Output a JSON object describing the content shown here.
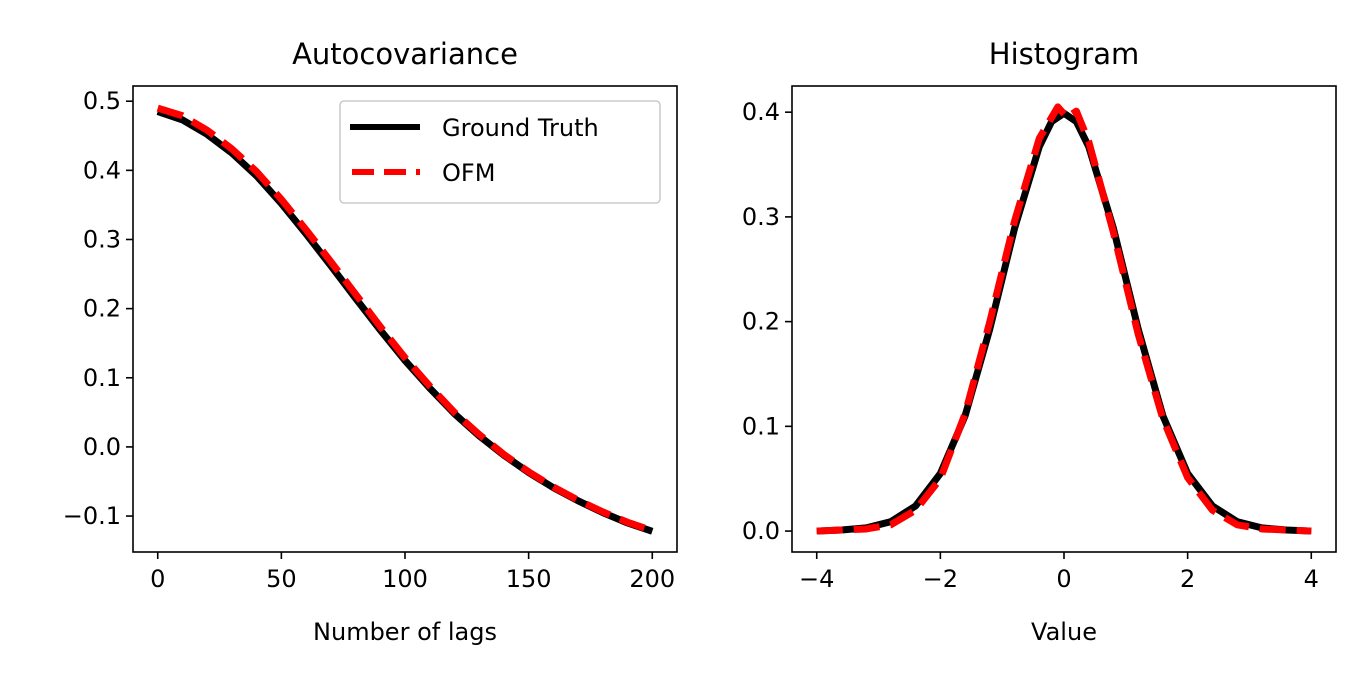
{
  "chart_data": [
    {
      "type": "line",
      "title": "Autocovariance",
      "xlabel": "Number of lags",
      "ylabel": "",
      "xlim": [
        -10,
        210
      ],
      "ylim": [
        -0.152,
        0.522
      ],
      "xticks": [
        0,
        50,
        100,
        150,
        200
      ],
      "xtick_labels": [
        "0",
        "50",
        "100",
        "150",
        "200"
      ],
      "yticks": [
        -0.1,
        0.0,
        0.1,
        0.2,
        0.3,
        0.4,
        0.5
      ],
      "ytick_labels": [
        "−0.1",
        "0.0",
        "0.1",
        "0.2",
        "0.3",
        "0.4",
        "0.5"
      ],
      "legend": {
        "position": "upper right"
      },
      "series": [
        {
          "name": "Ground Truth",
          "color": "#000000",
          "style": "solid",
          "x": [
            0,
            10,
            20,
            30,
            40,
            50,
            60,
            70,
            80,
            90,
            100,
            110,
            120,
            130,
            140,
            150,
            160,
            170,
            180,
            190,
            200
          ],
          "y": [
            0.485,
            0.473,
            0.452,
            0.425,
            0.392,
            0.352,
            0.308,
            0.262,
            0.215,
            0.169,
            0.125,
            0.085,
            0.048,
            0.016,
            -0.012,
            -0.037,
            -0.059,
            -0.078,
            -0.095,
            -0.11,
            -0.122
          ]
        },
        {
          "name": "OFM",
          "color": "#ff0000",
          "style": "dashed",
          "x": [
            0,
            10,
            20,
            30,
            40,
            50,
            60,
            70,
            80,
            90,
            100,
            110,
            120,
            130,
            140,
            150,
            160,
            170,
            180,
            190,
            200
          ],
          "y": [
            0.49,
            0.479,
            0.458,
            0.431,
            0.398,
            0.358,
            0.314,
            0.268,
            0.221,
            0.174,
            0.129,
            0.088,
            0.05,
            0.018,
            -0.011,
            -0.036,
            -0.058,
            -0.077,
            -0.094,
            -0.109,
            -0.121
          ]
        }
      ]
    },
    {
      "type": "line",
      "title": "Histogram",
      "xlabel": "Value",
      "ylabel": "",
      "xlim": [
        -4.4,
        4.4
      ],
      "ylim": [
        -0.02,
        0.425
      ],
      "xticks": [
        -4,
        -2,
        0,
        2,
        4
      ],
      "xtick_labels": [
        "−4",
        "−2",
        "0",
        "2",
        "4"
      ],
      "yticks": [
        0.0,
        0.1,
        0.2,
        0.3,
        0.4
      ],
      "ytick_labels": [
        "0.0",
        "0.1",
        "0.2",
        "0.3",
        "0.4"
      ],
      "series": [
        {
          "name": "Ground Truth",
          "color": "#000000",
          "style": "solid",
          "x": [
            -4.0,
            -3.6,
            -3.2,
            -2.8,
            -2.4,
            -2.0,
            -1.6,
            -1.2,
            -0.8,
            -0.4,
            -0.2,
            0.0,
            0.2,
            0.4,
            0.8,
            1.2,
            1.6,
            2.0,
            2.4,
            2.8,
            3.2,
            3.6,
            4.0
          ],
          "y": [
            0.0,
            0.001,
            0.003,
            0.009,
            0.024,
            0.055,
            0.11,
            0.193,
            0.289,
            0.367,
            0.391,
            0.399,
            0.391,
            0.367,
            0.289,
            0.193,
            0.11,
            0.055,
            0.024,
            0.009,
            0.003,
            0.001,
            0.0
          ]
        },
        {
          "name": "OFM",
          "color": "#ff0000",
          "style": "dashed",
          "x": [
            -4.0,
            -3.6,
            -3.2,
            -2.8,
            -2.4,
            -2.0,
            -1.6,
            -1.2,
            -0.8,
            -0.4,
            -0.1,
            0.05,
            0.2,
            0.4,
            0.8,
            1.2,
            1.6,
            2.0,
            2.4,
            2.8,
            3.2,
            3.6,
            4.0
          ],
          "y": [
            0.0,
            0.001,
            0.002,
            0.006,
            0.02,
            0.05,
            0.112,
            0.2,
            0.296,
            0.375,
            0.405,
            0.395,
            0.401,
            0.372,
            0.285,
            0.188,
            0.107,
            0.051,
            0.02,
            0.006,
            0.002,
            0.001,
            0.0
          ]
        }
      ]
    }
  ]
}
